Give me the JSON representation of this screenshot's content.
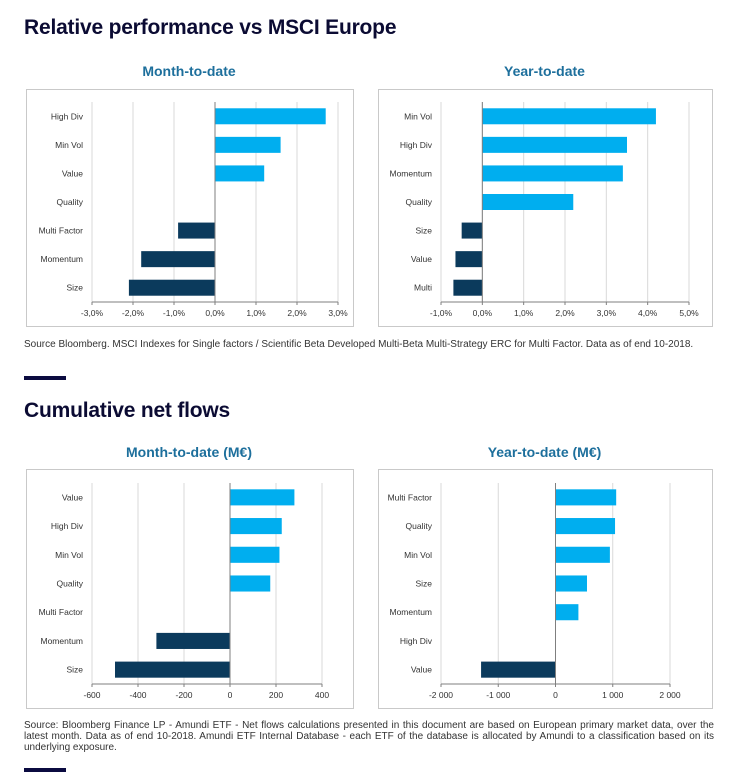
{
  "sections": {
    "performance": {
      "title": "Relative performance vs MSCI Europe",
      "source": "Source Bloomberg. MSCI Indexes for Single factors / Scientific Beta Developed Multi-Beta Multi-Strategy ERC for Multi Factor. Data as of end 10-2018."
    },
    "flows": {
      "title": "Cumulative net flows",
      "source": "Source: Bloomberg Finance LP - Amundi ETF - Net flows calculations presented in this document are based on European primary market data, over the latest month. Data as of end 10-2018. Amundi ETF Internal Database - each ETF of the database is allocated by Amundi to a classification based on its underlying exposure."
    }
  },
  "colors": {
    "positive": "#00aeef",
    "negative": "#0b3a5c",
    "grid": "#d9d9d9",
    "axis": "#7f7f7f"
  },
  "chart_data": [
    {
      "id": "perf-mtd",
      "type": "bar",
      "orientation": "horizontal",
      "title": "Month-to-date",
      "categories": [
        "High Div",
        "Min Vol",
        "Value",
        "Quality",
        "Multi Factor",
        "Momentum",
        "Size"
      ],
      "values": [
        2.7,
        1.6,
        1.2,
        0,
        -0.9,
        -1.8,
        -2.1
      ],
      "xlim": [
        -3.0,
        3.0
      ],
      "ticks": [
        -3,
        -2,
        -1,
        0,
        1,
        2,
        3
      ],
      "tick_labels": [
        "-3,0%",
        "-2,0%",
        "-1,0%",
        "0,0%",
        "1,0%",
        "2,0%",
        "3,0%"
      ],
      "grid": true
    },
    {
      "id": "perf-ytd",
      "type": "bar",
      "orientation": "horizontal",
      "title": "Year-to-date",
      "categories": [
        "Min Vol",
        "High Div",
        "Momentum",
        "Quality",
        "Size",
        "Value",
        "Multi"
      ],
      "values": [
        4.2,
        3.5,
        3.4,
        2.2,
        -0.5,
        -0.65,
        -0.7
      ],
      "xlim": [
        -1.0,
        5.0
      ],
      "ticks": [
        -1,
        0,
        1,
        2,
        3,
        4,
        5
      ],
      "tick_labels": [
        "-1,0%",
        "0,0%",
        "1,0%",
        "2,0%",
        "3,0%",
        "4,0%",
        "5,0%"
      ],
      "grid": true
    },
    {
      "id": "flows-mtd",
      "type": "bar",
      "orientation": "horizontal",
      "title": "Month-to-date (M€)",
      "categories": [
        "Value",
        "High Div",
        "Min Vol",
        "Quality",
        "Multi Factor",
        "Momentum",
        "Size"
      ],
      "values": [
        280,
        225,
        215,
        175,
        0,
        -320,
        -500
      ],
      "xlim": [
        -600,
        400
      ],
      "ticks": [
        -600,
        -400,
        -200,
        0,
        200,
        400
      ],
      "tick_labels": [
        "-600",
        "-400",
        "-200",
        "0",
        "200",
        "400"
      ],
      "grid": true
    },
    {
      "id": "flows-ytd",
      "type": "bar",
      "orientation": "horizontal",
      "title": "Year-to-date (M€)",
      "categories": [
        "Multi Factor",
        "Quality",
        "Min Vol",
        "Size",
        "Momentum",
        "High Div",
        "Value"
      ],
      "values": [
        1060,
        1040,
        950,
        550,
        400,
        0,
        -1300
      ],
      "xlim": [
        -2000,
        2000
      ],
      "ticks": [
        -2000,
        -1000,
        0,
        1000,
        2000
      ],
      "tick_labels": [
        "-2 000",
        "-1 000",
        "0",
        "1 000",
        "2 000"
      ],
      "grid": true
    }
  ]
}
